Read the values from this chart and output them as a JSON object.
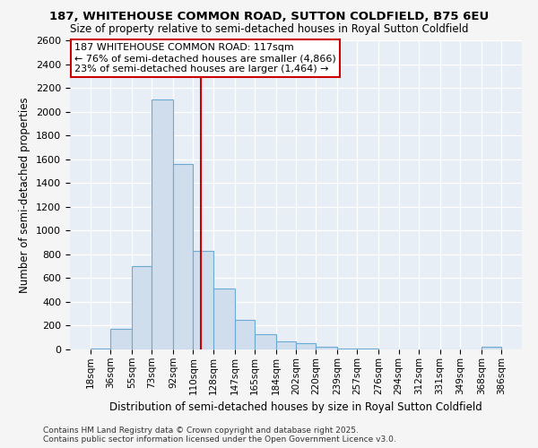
{
  "title1": "187, WHITEHOUSE COMMON ROAD, SUTTON COLDFIELD, B75 6EU",
  "title2": "Size of property relative to semi-detached houses in Royal Sutton Coldfield",
  "xlabel": "Distribution of semi-detached houses by size in Royal Sutton Coldfield",
  "ylabel": "Number of semi-detached properties",
  "footnote1": "Contains HM Land Registry data © Crown copyright and database right 2025.",
  "footnote2": "Contains public sector information licensed under the Open Government Licence v3.0.",
  "annotation_line1": "187 WHITEHOUSE COMMON ROAD: 117sqm",
  "annotation_line2": "← 76% of semi-detached houses are smaller (4,866)",
  "annotation_line3": "23% of semi-detached houses are larger (1,464) →",
  "bin_edges": [
    18,
    36,
    55,
    73,
    92,
    110,
    128,
    147,
    165,
    184,
    202,
    220,
    239,
    257,
    276,
    294,
    312,
    331,
    349,
    368,
    386
  ],
  "bar_values": [
    10,
    175,
    700,
    2100,
    1560,
    830,
    510,
    250,
    125,
    70,
    55,
    25,
    10,
    5,
    0,
    0,
    0,
    0,
    0,
    20
  ],
  "bar_color": "#cfdded",
  "bar_edge_color": "#6aaad4",
  "vline_color": "#cc0000",
  "vline_x": 117,
  "ylim": [
    0,
    2600
  ],
  "yticks": [
    0,
    200,
    400,
    600,
    800,
    1000,
    1200,
    1400,
    1600,
    1800,
    2000,
    2200,
    2400,
    2600
  ],
  "fig_bg_color": "#f5f5f5",
  "plot_bg_color": "#e8eef5",
  "grid_color": "#ffffff",
  "annotation_box_facecolor": "#ffffff",
  "annotation_box_edgecolor": "#cc0000"
}
